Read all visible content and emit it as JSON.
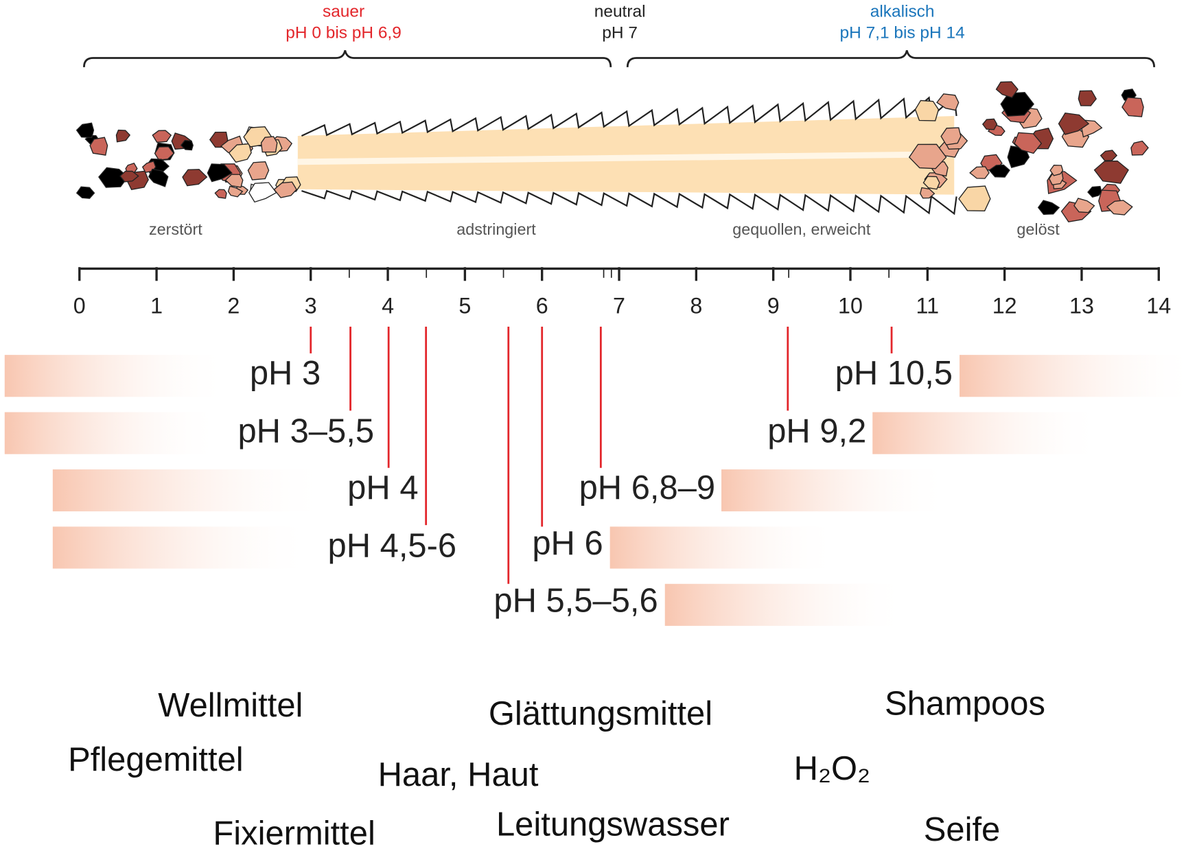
{
  "ranges": [
    {
      "name": "sauer",
      "range": "pH 0 bis pH 6,9"
    },
    {
      "name": "neutral",
      "range": "pH 7"
    },
    {
      "name": "alkalisch",
      "range": "pH 7,1 bis pH 14"
    }
  ],
  "states": [
    "zerstört",
    "adstringiert",
    "gequollen, erweicht",
    "gelöst"
  ],
  "scale": {
    "ticks": [
      0,
      1,
      2,
      3,
      4,
      5,
      6,
      7,
      8,
      9,
      10,
      11,
      12,
      13,
      14
    ]
  },
  "markers": [
    "pH 3",
    "pH 3–5,5",
    "pH 4",
    "pH 4,5-6",
    "pH 5,5–5,6",
    "pH 6",
    "pH 6,8–9",
    "pH 9,2",
    "pH 10,5"
  ],
  "products": [
    "Wellmittel",
    "Pflegemittel",
    "Fixiermittel",
    "Haar, Haut",
    "Glättungsmittel",
    "Leitungswasser",
    "Shampoos",
    "H₂O₂",
    "Seife"
  ]
}
